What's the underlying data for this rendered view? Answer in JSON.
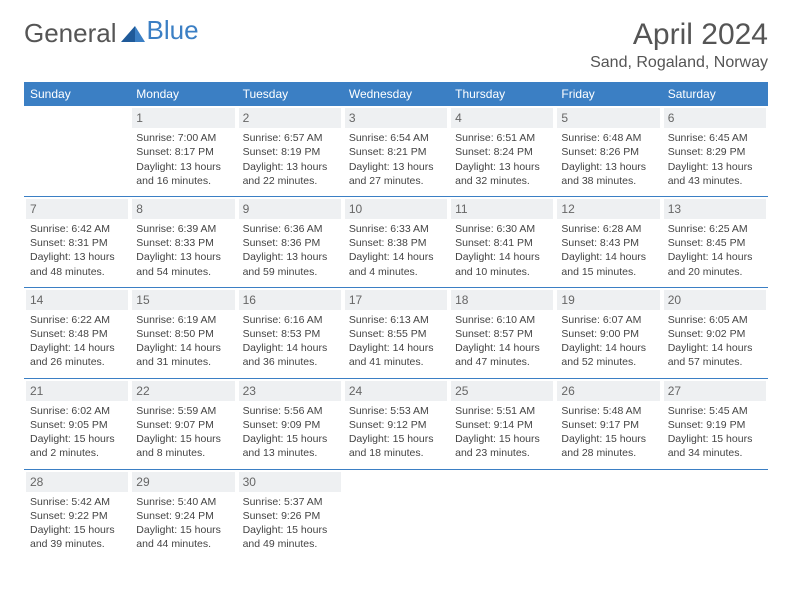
{
  "logo": {
    "text1": "General",
    "text2": "Blue"
  },
  "title": "April 2024",
  "location": "Sand, Rogaland, Norway",
  "dayHeaders": [
    "Sunday",
    "Monday",
    "Tuesday",
    "Wednesday",
    "Thursday",
    "Friday",
    "Saturday"
  ],
  "colors": {
    "headerBg": "#3b7fc4",
    "headerText": "#ffffff",
    "dayNumBg": "#eef0f2",
    "rowBorder": "#3b7fc4",
    "pageBg": "#ffffff",
    "textColor": "#444444"
  },
  "weeks": [
    [
      null,
      {
        "n": "1",
        "sr": "7:00 AM",
        "ss": "8:17 PM",
        "dl": "13 hours and 16 minutes."
      },
      {
        "n": "2",
        "sr": "6:57 AM",
        "ss": "8:19 PM",
        "dl": "13 hours and 22 minutes."
      },
      {
        "n": "3",
        "sr": "6:54 AM",
        "ss": "8:21 PM",
        "dl": "13 hours and 27 minutes."
      },
      {
        "n": "4",
        "sr": "6:51 AM",
        "ss": "8:24 PM",
        "dl": "13 hours and 32 minutes."
      },
      {
        "n": "5",
        "sr": "6:48 AM",
        "ss": "8:26 PM",
        "dl": "13 hours and 38 minutes."
      },
      {
        "n": "6",
        "sr": "6:45 AM",
        "ss": "8:29 PM",
        "dl": "13 hours and 43 minutes."
      }
    ],
    [
      {
        "n": "7",
        "sr": "6:42 AM",
        "ss": "8:31 PM",
        "dl": "13 hours and 48 minutes."
      },
      {
        "n": "8",
        "sr": "6:39 AM",
        "ss": "8:33 PM",
        "dl": "13 hours and 54 minutes."
      },
      {
        "n": "9",
        "sr": "6:36 AM",
        "ss": "8:36 PM",
        "dl": "13 hours and 59 minutes."
      },
      {
        "n": "10",
        "sr": "6:33 AM",
        "ss": "8:38 PM",
        "dl": "14 hours and 4 minutes."
      },
      {
        "n": "11",
        "sr": "6:30 AM",
        "ss": "8:41 PM",
        "dl": "14 hours and 10 minutes."
      },
      {
        "n": "12",
        "sr": "6:28 AM",
        "ss": "8:43 PM",
        "dl": "14 hours and 15 minutes."
      },
      {
        "n": "13",
        "sr": "6:25 AM",
        "ss": "8:45 PM",
        "dl": "14 hours and 20 minutes."
      }
    ],
    [
      {
        "n": "14",
        "sr": "6:22 AM",
        "ss": "8:48 PM",
        "dl": "14 hours and 26 minutes."
      },
      {
        "n": "15",
        "sr": "6:19 AM",
        "ss": "8:50 PM",
        "dl": "14 hours and 31 minutes."
      },
      {
        "n": "16",
        "sr": "6:16 AM",
        "ss": "8:53 PM",
        "dl": "14 hours and 36 minutes."
      },
      {
        "n": "17",
        "sr": "6:13 AM",
        "ss": "8:55 PM",
        "dl": "14 hours and 41 minutes."
      },
      {
        "n": "18",
        "sr": "6:10 AM",
        "ss": "8:57 PM",
        "dl": "14 hours and 47 minutes."
      },
      {
        "n": "19",
        "sr": "6:07 AM",
        "ss": "9:00 PM",
        "dl": "14 hours and 52 minutes."
      },
      {
        "n": "20",
        "sr": "6:05 AM",
        "ss": "9:02 PM",
        "dl": "14 hours and 57 minutes."
      }
    ],
    [
      {
        "n": "21",
        "sr": "6:02 AM",
        "ss": "9:05 PM",
        "dl": "15 hours and 2 minutes."
      },
      {
        "n": "22",
        "sr": "5:59 AM",
        "ss": "9:07 PM",
        "dl": "15 hours and 8 minutes."
      },
      {
        "n": "23",
        "sr": "5:56 AM",
        "ss": "9:09 PM",
        "dl": "15 hours and 13 minutes."
      },
      {
        "n": "24",
        "sr": "5:53 AM",
        "ss": "9:12 PM",
        "dl": "15 hours and 18 minutes."
      },
      {
        "n": "25",
        "sr": "5:51 AM",
        "ss": "9:14 PM",
        "dl": "15 hours and 23 minutes."
      },
      {
        "n": "26",
        "sr": "5:48 AM",
        "ss": "9:17 PM",
        "dl": "15 hours and 28 minutes."
      },
      {
        "n": "27",
        "sr": "5:45 AM",
        "ss": "9:19 PM",
        "dl": "15 hours and 34 minutes."
      }
    ],
    [
      {
        "n": "28",
        "sr": "5:42 AM",
        "ss": "9:22 PM",
        "dl": "15 hours and 39 minutes."
      },
      {
        "n": "29",
        "sr": "5:40 AM",
        "ss": "9:24 PM",
        "dl": "15 hours and 44 minutes."
      },
      {
        "n": "30",
        "sr": "5:37 AM",
        "ss": "9:26 PM",
        "dl": "15 hours and 49 minutes."
      },
      null,
      null,
      null,
      null
    ]
  ],
  "labels": {
    "sunrise": "Sunrise: ",
    "sunset": "Sunset: ",
    "daylight": "Daylight: "
  }
}
